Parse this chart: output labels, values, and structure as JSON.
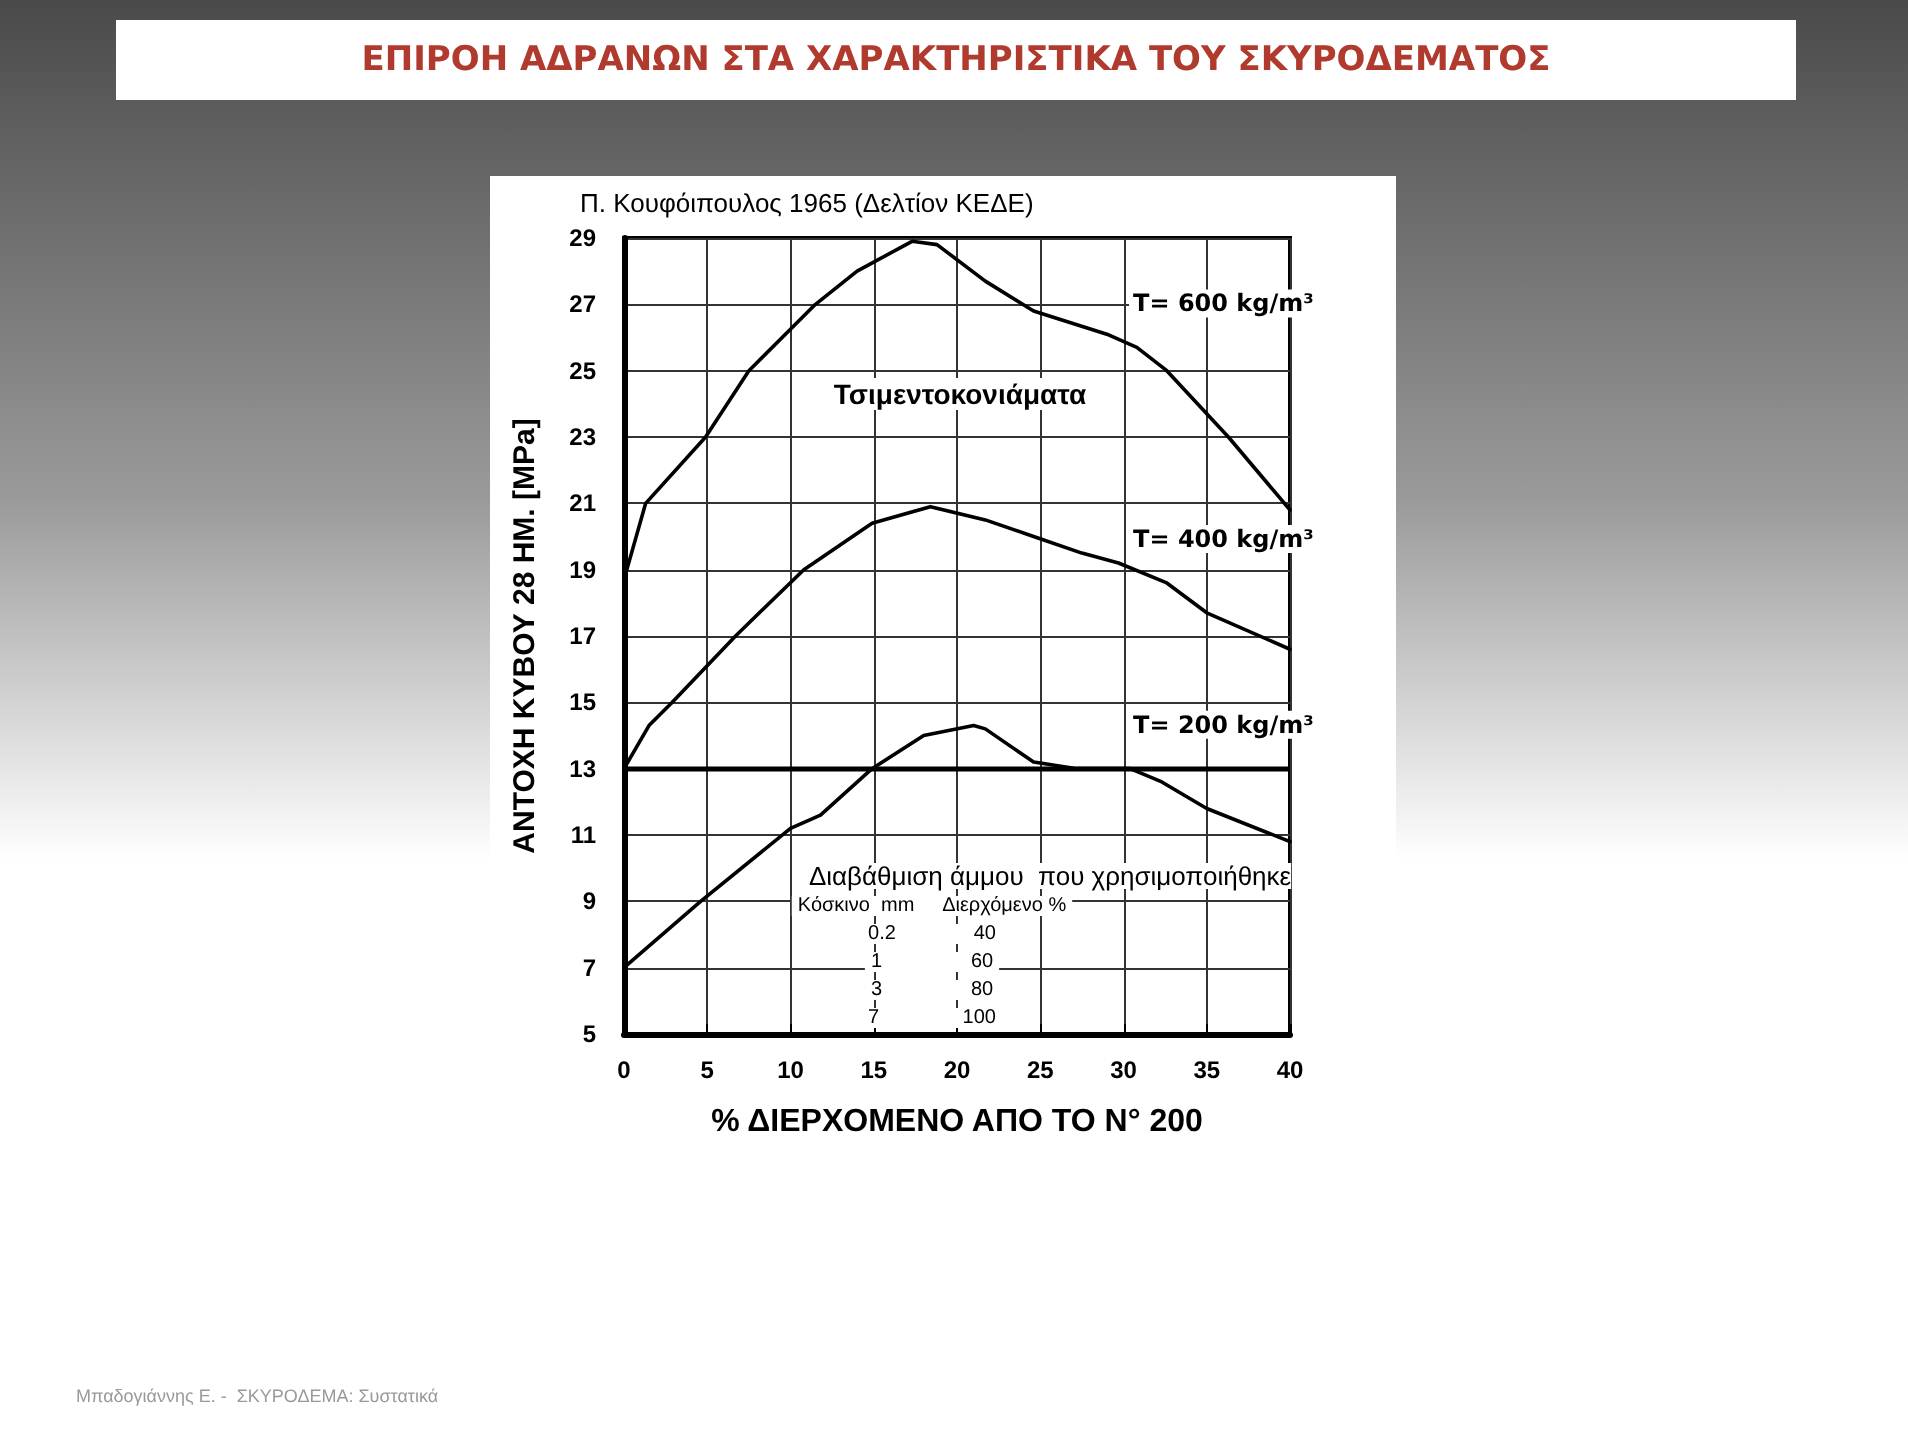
{
  "chart_data": {
    "type": "line",
    "title": "ΕΠΙΡΟΗ ΑΔΡΑΝΩΝ ΣΤΑ ΧΑΡΑΚΤΗΡΙΣΤΙΚΑ ΤΟΥ ΣΚΥΡΟΔΕΜΑΤΟΣ",
    "subtitle": "Π. Κουφόιπουλος 1965 (Δελτίον ΚΕΔΕ)",
    "xlabel": "% ΔΙΕΡΧΟΜΕΝΟ ΑΠΟ ΤΟ Ν° 200",
    "ylabel": "ΑΝΤΟΧΗ ΚΥΒΟΥ 28 ΗΜ. [MPa]",
    "series": [
      {
        "name": "T= 600 kg/m³",
        "color": "#000000",
        "x": [
          0,
          1.3,
          4.9,
          7.5,
          11.5,
          14,
          17.3,
          18.8,
          21.7,
          24.6,
          29,
          30.8,
          32.6,
          36.3,
          40
        ],
        "values": [
          18.7,
          21,
          23,
          25,
          27,
          28,
          28.9,
          28.8,
          27.7,
          26.8,
          26.1,
          25.7,
          25,
          23,
          20.8
        ]
      },
      {
        "name": "T= 400 kg/m³",
        "color": "#000000",
        "x": [
          0,
          1.5,
          2.9,
          6.7,
          10.8,
          14.9,
          18.4,
          21.7,
          24.6,
          27.5,
          29.7,
          32.6,
          35,
          40
        ],
        "values": [
          13,
          14.3,
          15,
          17,
          19,
          20.4,
          20.9,
          20.5,
          20,
          19.5,
          19.2,
          18.6,
          17.7,
          16.6
        ]
      },
      {
        "name": "T= 200 kg/m³",
        "color": "#000000",
        "x": [
          0,
          4.6,
          10,
          11.8,
          14.9,
          18,
          21,
          21.7,
          24.6,
          27.2,
          30.4,
          32.3,
          35,
          40
        ],
        "values": [
          7,
          9,
          11.2,
          11.6,
          13,
          14,
          14.3,
          14.2,
          13.2,
          13,
          13,
          12.6,
          11.8,
          10.8
        ]
      }
    ],
    "xlim": [
      0,
      40
    ],
    "xticks": [
      0,
      5,
      10,
      15,
      20,
      25,
      30,
      35,
      40
    ],
    "ylim": [
      5,
      29
    ],
    "yticks": [
      5,
      7,
      9,
      11,
      13,
      15,
      17,
      19,
      21,
      23,
      25,
      27,
      29
    ],
    "ref_lines": [
      {
        "axis": "y",
        "value": 13,
        "color": "#000000"
      }
    ],
    "grid": true,
    "marker": "none",
    "line_style": "solid",
    "annotations": [
      "Τσιμεντοκονιάματα",
      "Διαβάθμιση άμμου  που χρησιμοποιήθηκε",
      "Κόσκινο  mm     Διερχόμενο %",
      "0.2              40",
      "1                60",
      "3                80",
      "7               100",
      "Μπαδογιάννης Ε. -  ΣΚΥΡΟΔΕΜΑ: Συστατικά"
    ]
  }
}
